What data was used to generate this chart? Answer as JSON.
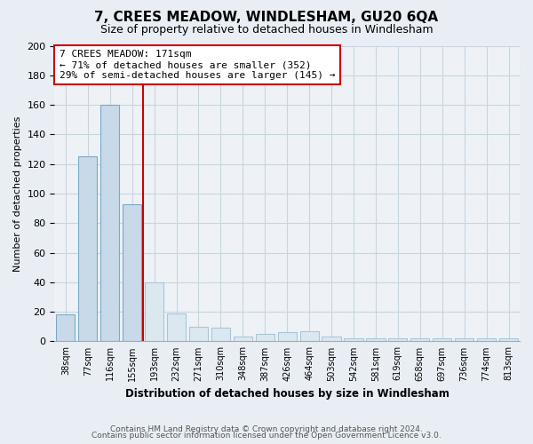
{
  "title": "7, CREES MEADOW, WINDLESHAM, GU20 6QA",
  "subtitle": "Size of property relative to detached houses in Windlesham",
  "xlabel": "Distribution of detached houses by size in Windlesham",
  "ylabel": "Number of detached properties",
  "categories": [
    "38sqm",
    "77sqm",
    "116sqm",
    "155sqm",
    "193sqm",
    "232sqm",
    "271sqm",
    "310sqm",
    "348sqm",
    "387sqm",
    "426sqm",
    "464sqm",
    "503sqm",
    "542sqm",
    "581sqm",
    "619sqm",
    "658sqm",
    "697sqm",
    "736sqm",
    "774sqm",
    "813sqm"
  ],
  "values": [
    18,
    125,
    160,
    93,
    40,
    19,
    10,
    9,
    3,
    5,
    6,
    7,
    3,
    2,
    2,
    2,
    2,
    2,
    2,
    2,
    2
  ],
  "bar_fill_left": "#c8d9ea",
  "bar_edge_left": "#7aaac8",
  "bar_fill_right": "#dce8f0",
  "bar_edge_right": "#aac4d8",
  "vline_color": "#cc0000",
  "annotation_line1": "7 CREES MEADOW: 171sqm",
  "annotation_line2": "← 71% of detached houses are smaller (352)",
  "annotation_line3": "29% of semi-detached houses are larger (145) →",
  "annotation_box_edgecolor": "#cc0000",
  "ylim": [
    0,
    200
  ],
  "yticks": [
    0,
    20,
    40,
    60,
    80,
    100,
    120,
    140,
    160,
    180,
    200
  ],
  "footer_line1": "Contains HM Land Registry data © Crown copyright and database right 2024.",
  "footer_line2": "Contains public sector information licensed under the Open Government Licence v3.0.",
  "background_color": "#e8eef4",
  "plot_background_color": "#eef2f7",
  "grid_color": "#c8d4e0",
  "title_fontsize": 11,
  "subtitle_fontsize": 9
}
